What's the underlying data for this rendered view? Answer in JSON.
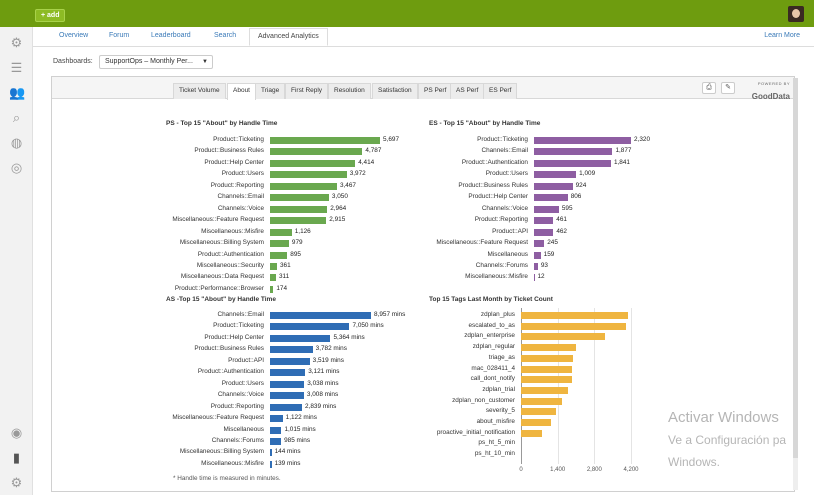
{
  "topbar": {
    "add_label": "+ add"
  },
  "nav": {
    "tabs": [
      "Overview",
      "Forum",
      "Leaderboard",
      "Search",
      "Advanced Analytics"
    ],
    "active_tab": "Advanced Analytics",
    "learn_more": "Learn More"
  },
  "dashboard": {
    "label": "Dashboards:",
    "selected": "SupportOps – Monthly Per..."
  },
  "subtabs": [
    "Ticket Volume",
    "About",
    "Triage",
    "First Reply",
    "Resolution",
    "Satisfaction",
    "PS Perf",
    "AS Perf",
    "ES Perf"
  ],
  "active_subtab": "About",
  "branding": {
    "powered_by": "POWERED BY",
    "name": "GoodData"
  },
  "footnote": "* Handle time is measured in minutes.",
  "watermark": {
    "line1": "Activar Windows",
    "line2": "Ve a Configuración pa",
    "line3": "Windows."
  },
  "colors": {
    "ps": "#6aa84f",
    "es": "#8e5ea2",
    "as": "#2f6db5",
    "tags": "#efb540"
  },
  "chart_data": [
    {
      "type": "bar",
      "title": "PS - Top 15 \"About\" by Handle Time",
      "color": "#6aa84f",
      "categories": [
        "Product::Ticketing",
        "Product::Business Rules",
        "Product::Help Center",
        "Product::Users",
        "Product::Reporting",
        "Channels::Email",
        "Channels::Voice",
        "Miscellaneous::Feature Request",
        "Miscellaneous::Misfire",
        "Miscellaneous::Billing System",
        "Product::Authentication",
        "Miscellaneous::Security",
        "Miscellaneous::Data Request",
        "Product::Performance::Browser"
      ],
      "values": [
        5697,
        4787,
        4414,
        3972,
        3467,
        3050,
        2964,
        2915,
        1126,
        979,
        895,
        361,
        311,
        174
      ],
      "labels": [
        "5,697",
        "4,787",
        "4,414",
        "3,972",
        "3,467",
        "3,050",
        "2,964",
        "2,915",
        "1,126",
        "979",
        "895",
        "361",
        "311",
        "174"
      ],
      "xlim": [
        0,
        5697
      ]
    },
    {
      "type": "bar",
      "title": "ES - Top 15 \"About\" by Handle Time",
      "color": "#8e5ea2",
      "categories": [
        "Product::Ticketing",
        "Channels::Email",
        "Product::Authentication",
        "Product::Users",
        "Product::Business Rules",
        "Product::Help Center",
        "Channels::Voice",
        "Product::Reporting",
        "Product::API",
        "Miscellaneous::Feature Request",
        "Miscellaneous",
        "Channels::Forums",
        "Miscellaneous::Misfire"
      ],
      "values": [
        2320,
        1877,
        1841,
        1009,
        924,
        806,
        595,
        461,
        462,
        245,
        159,
        93,
        12
      ],
      "labels": [
        "2,320",
        "1,877",
        "1,841",
        "1,009",
        "924",
        "806",
        "595",
        "461",
        "462",
        "245",
        "159",
        "93",
        "12"
      ],
      "xlim": [
        0,
        2320
      ]
    },
    {
      "type": "bar",
      "title": "AS -Top 15 \"About\" by Handle Time",
      "color": "#2f6db5",
      "categories": [
        "Channels::Email",
        "Product::Ticketing",
        "Product::Help Center",
        "Product::Business Rules",
        "Product::API",
        "Product::Authentication",
        "Product::Users",
        "Channels::Voice",
        "Product::Reporting",
        "Miscellaneous::Feature Request",
        "Miscellaneous",
        "Channels::Forums",
        "Miscellaneous::Billing System",
        "Miscellaneous::Misfire"
      ],
      "values": [
        8957,
        7050,
        5364,
        3782,
        3519,
        3121,
        3038,
        3008,
        2839,
        1122,
        1015,
        985,
        144,
        139
      ],
      "labels": [
        "8,957 mins",
        "7,050 mins",
        "5,364 mins",
        "3,782 mins",
        "3,519 mins",
        "3,121 mins",
        "3,038 mins",
        "3,008 mins",
        "2,839 mins",
        "1,122 mins",
        "1,015 mins",
        "985 mins",
        "144 mins",
        "139 mins"
      ],
      "xlim": [
        0,
        8957
      ]
    },
    {
      "type": "bar",
      "title": "Top 15 Tags Last Month by Ticket Count",
      "color": "#efb540",
      "categories": [
        "zdplan_plus",
        "escalated_to_as",
        "zdplan_enterprise",
        "zdplan_regular",
        "triage_as",
        "mac_028411_4",
        "call_dont_notify",
        "zdplan_trial",
        "zdplan_non_customer",
        "severity_5",
        "about_misfire",
        "proactive_initial_notification",
        "ps_ht_5_min",
        "ps_ht_10_min"
      ],
      "values": [
        4100,
        4000,
        3200,
        2100,
        2000,
        1950,
        1950,
        1800,
        1550,
        1350,
        1150,
        800,
        0,
        0
      ],
      "ticks": [
        0,
        1400,
        2800,
        4200
      ],
      "tick_labels": [
        "0",
        "1,400",
        "2,800",
        "4,200"
      ],
      "xlim": [
        0,
        4200
      ]
    }
  ]
}
